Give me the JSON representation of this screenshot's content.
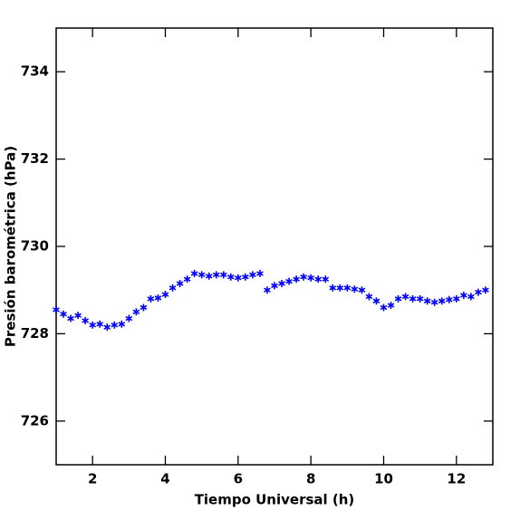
{
  "chart_data": {
    "type": "scatter",
    "x_label": "Tiempo Universal (h)",
    "y_label": "Presión barométrica (hPa)",
    "xlim": [
      1,
      13
    ],
    "ylim": [
      725,
      735
    ],
    "xticks": [
      2,
      4,
      6,
      8,
      10,
      12
    ],
    "yticks": [
      726,
      728,
      730,
      732,
      734
    ],
    "color": "#0000ff",
    "x": [
      1.0,
      1.2,
      1.4,
      1.6,
      1.8,
      2.0,
      2.2,
      2.4,
      2.6,
      2.8,
      3.0,
      3.2,
      3.4,
      3.6,
      3.8,
      4.0,
      4.2,
      4.4,
      4.6,
      4.8,
      5.0,
      5.2,
      5.4,
      5.6,
      5.8,
      6.0,
      6.2,
      6.4,
      6.6,
      6.8,
      7.0,
      7.2,
      7.4,
      7.6,
      7.8,
      8.0,
      8.2,
      8.4,
      8.6,
      8.8,
      9.0,
      9.2,
      9.4,
      9.6,
      9.8,
      10.0,
      10.2,
      10.4,
      10.6,
      10.8,
      11.0,
      11.2,
      11.4,
      11.6,
      11.8,
      12.0,
      12.2,
      12.4,
      12.6,
      12.8
    ],
    "y": [
      728.55,
      728.45,
      728.35,
      728.42,
      728.3,
      728.2,
      728.22,
      728.15,
      728.2,
      728.22,
      728.35,
      728.5,
      728.6,
      728.8,
      728.82,
      728.9,
      729.05,
      729.15,
      729.25,
      729.38,
      729.35,
      729.32,
      729.35,
      729.35,
      729.3,
      729.28,
      729.3,
      729.35,
      729.38,
      729.0,
      729.1,
      729.15,
      729.2,
      729.25,
      729.3,
      729.28,
      729.25,
      729.25,
      729.05,
      729.05,
      729.05,
      729.02,
      729.0,
      728.85,
      728.75,
      728.6,
      728.65,
      728.8,
      728.85,
      728.8,
      728.8,
      728.75,
      728.72,
      728.75,
      728.78,
      728.8,
      728.88,
      728.85,
      728.95,
      729.0
    ]
  }
}
